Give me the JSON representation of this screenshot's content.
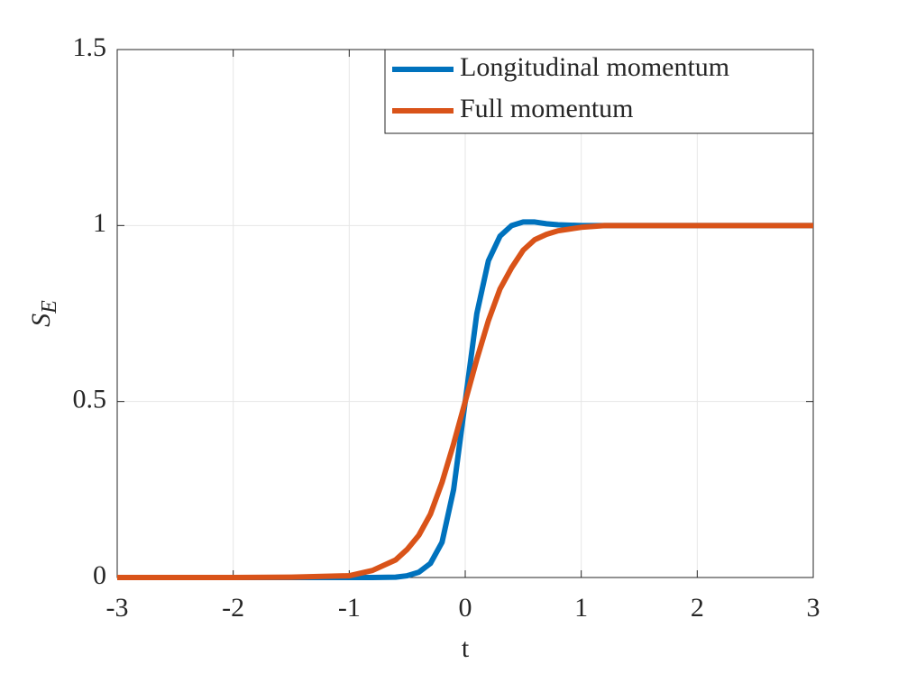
{
  "chart_data": {
    "type": "line",
    "xlabel": "t",
    "ylabel": "S",
    "ylabel_subscript": "E",
    "x": [
      -3,
      -2,
      -1.5,
      -1,
      -0.8,
      -0.6,
      -0.5,
      -0.4,
      -0.3,
      -0.2,
      -0.1,
      0,
      0.1,
      0.2,
      0.3,
      0.4,
      0.5,
      0.6,
      0.7,
      0.8,
      1,
      1.2,
      1.5,
      2,
      3
    ],
    "series": [
      {
        "name": "Longitudinal momentum",
        "color": "#0072bd",
        "values": [
          0,
          0,
          0,
          0,
          0,
          0.001,
          0.005,
          0.015,
          0.04,
          0.1,
          0.25,
          0.5,
          0.75,
          0.9,
          0.97,
          1.0,
          1.01,
          1.01,
          1.005,
          1.002,
          1.0,
          1.0,
          1.0,
          1.0,
          1.0
        ]
      },
      {
        "name": "Full momentum",
        "color": "#d95319",
        "values": [
          0,
          0,
          0.001,
          0.005,
          0.02,
          0.05,
          0.08,
          0.12,
          0.18,
          0.27,
          0.38,
          0.5,
          0.62,
          0.73,
          0.82,
          0.88,
          0.93,
          0.96,
          0.975,
          0.985,
          0.995,
          1.0,
          1.0,
          1.0,
          1.0
        ]
      }
    ],
    "xlim": [
      -3,
      3
    ],
    "xticks": [
      -3,
      -2,
      -1,
      0,
      1,
      2,
      3
    ],
    "ylim": [
      0,
      1.5
    ],
    "yticks": [
      0,
      0.5,
      1,
      1.5
    ],
    "grid": true,
    "legend": "upper right"
  }
}
